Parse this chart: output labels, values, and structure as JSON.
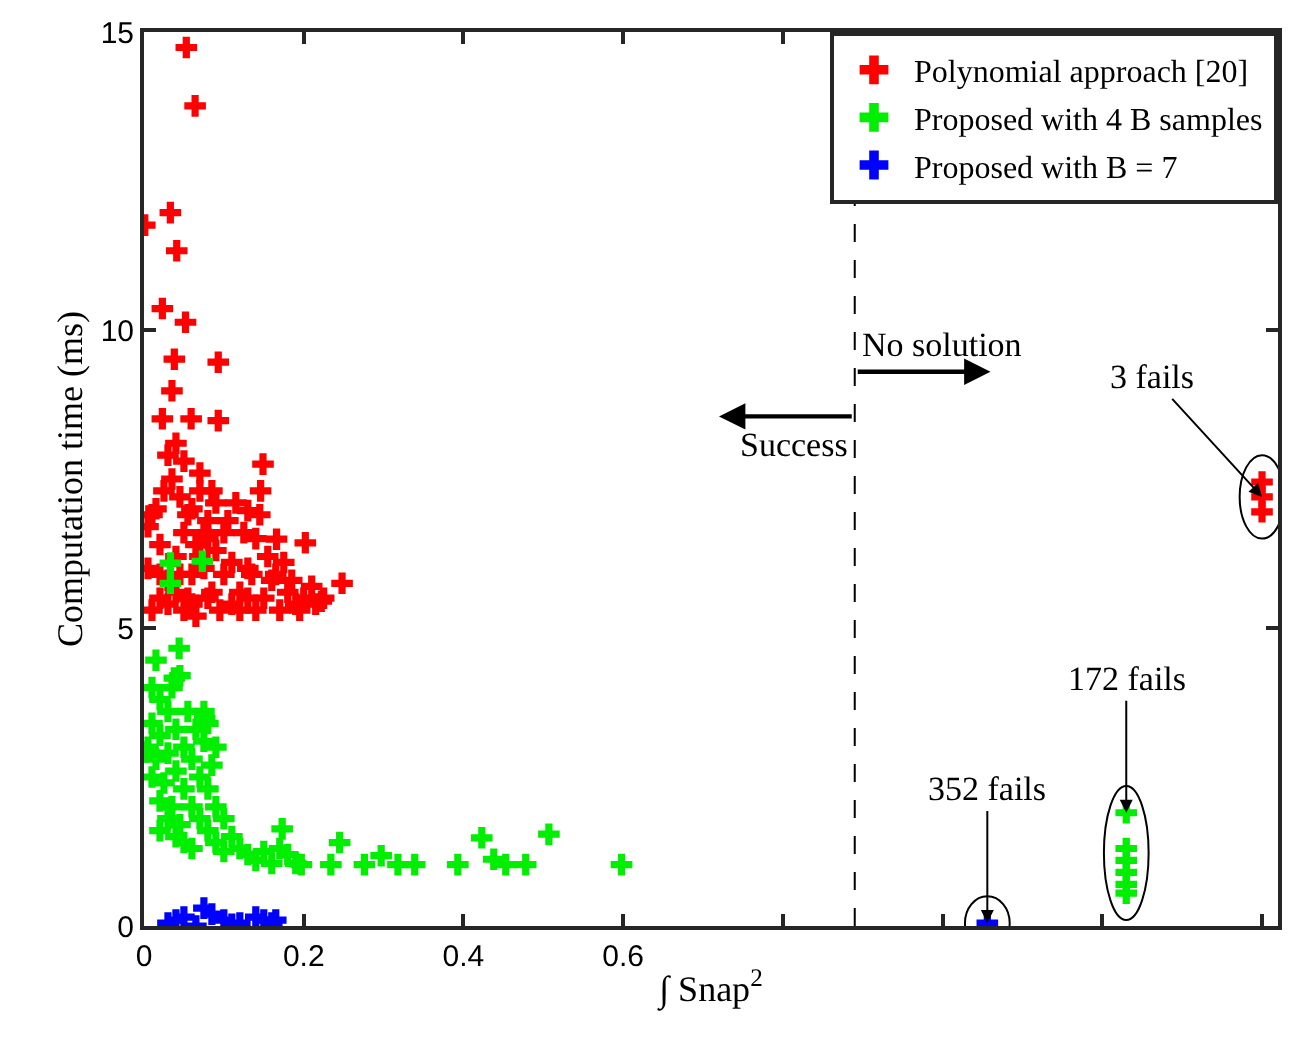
{
  "chart_data": {
    "type": "scatter",
    "xlabel": "∫ Snap$^{2}$",
    "ylabel": "Computation time (ms)",
    "marker": "cross",
    "legend": "top right",
    "xlim": [
      0,
      1.42
    ],
    "ylim": [
      0,
      15
    ],
    "xticks": [
      0,
      0.2,
      0.4,
      0.6,
      {
        "value": 0.8,
        "label": null
      },
      {
        "value": 1.0,
        "label": null
      },
      {
        "value": 1.2,
        "label": null
      },
      {
        "value": 1.4,
        "label": null
      }
    ],
    "yticks": [
      0,
      5,
      10,
      15
    ],
    "ref_lines": [
      {
        "axis": "x",
        "value": 0.89,
        "color": "#000000",
        "line_style": "dashed"
      }
    ],
    "annotations": [
      "Success",
      "No solution",
      {
        "text": "3 fails",
        "x": 1.4,
        "y": 7.2
      },
      {
        "text": "172 fails",
        "x": 1.23,
        "y": 1.9
      },
      {
        "text": "352 fails",
        "x": 1.056,
        "y": 0.05
      }
    ],
    "series": [
      {
        "name": "Polynomial approach [20]",
        "color": "#ff0000",
        "x": [
          0.053,
          0.064,
          0.033,
          0.001,
          0.041,
          0.023,
          0.052,
          0.038,
          0.093,
          0.035,
          0.023,
          0.059,
          0.093,
          0.149,
          0.146,
          0.248,
          0.202,
          0.166,
          0.222,
          0.13,
          0.01,
          0.02,
          0.03,
          0.04,
          0.05,
          0.06,
          0.07,
          0.08,
          0.09,
          0.1,
          0.11,
          0.12,
          0.13,
          0.14,
          0.15,
          0.16,
          0.17,
          0.18,
          0.19,
          0.2,
          0.21,
          0.005,
          0.005,
          0.015,
          0.025,
          0.035,
          0.045,
          0.055,
          0.065,
          0.075,
          0.085,
          0.095,
          0.105,
          0.115,
          0.125,
          0.135,
          0.02,
          0.03,
          0.04,
          0.05,
          0.06,
          0.07,
          0.08,
          0.09,
          0.1,
          0.03,
          0.05,
          0.07,
          0.04,
          0.11,
          0.145,
          0.155,
          0.165,
          0.175,
          0.185,
          0.195,
          0.215,
          0.225,
          0.06,
          0.08,
          0.02,
          0.01,
          0.045,
          0.055,
          0.065,
          0.075,
          0.085,
          0.12,
          0.13,
          0.14,
          1.4,
          1.4,
          1.4
        ],
        "values": [
          14.74,
          13.76,
          11.97,
          11.76,
          11.33,
          10.36,
          10.13,
          9.51,
          9.46,
          8.98,
          8.51,
          8.51,
          8.48,
          7.75,
          7.3,
          5.75,
          6.43,
          6.49,
          5.45,
          6.97,
          5.3,
          5.5,
          5.8,
          6.2,
          6.6,
          7.0,
          7.3,
          6.8,
          6.3,
          5.9,
          5.4,
          5.6,
          6.0,
          6.5,
          5.5,
          5.8,
          5.3,
          5.6,
          5.4,
          5.5,
          5.7,
          6.0,
          6.7,
          7.0,
          7.3,
          7.5,
          7.2,
          6.9,
          6.4,
          6.0,
          5.6,
          5.3,
          6.8,
          7.1,
          6.6,
          5.9,
          6.4,
          5.4,
          5.6,
          5.3,
          5.9,
          6.2,
          5.5,
          7.1,
          6.6,
          7.9,
          7.8,
          7.6,
          8.1,
          6.1,
          6.9,
          6.2,
          5.9,
          6.1,
          5.8,
          5.3,
          5.4,
          5.5,
          5.4,
          6.5,
          5.9,
          6.9,
          5.9,
          5.5,
          5.2,
          6.6,
          7.3,
          5.3,
          5.5,
          5.3,
          7.45,
          7.2,
          6.95
        ]
      },
      {
        "name": "Proposed with 4 B samples",
        "color": "#00ee00",
        "x": [
          0.033,
          0.073,
          0.033,
          0.173,
          0.245,
          0.423,
          0.507,
          0.598,
          0.339,
          0.318,
          0.393,
          0.438,
          0.453,
          0.478,
          0.297,
          0.276,
          0.234,
          0.197,
          0.044,
          0.015,
          0.038,
          0.076,
          0.001,
          0.01,
          0.02,
          0.03,
          0.04,
          0.05,
          0.06,
          0.07,
          0.08,
          0.09,
          0.1,
          0.02,
          0.03,
          0.04,
          0.05,
          0.06,
          0.07,
          0.08,
          0.01,
          0.02,
          0.03,
          0.04,
          0.05,
          0.06,
          0.01,
          0.015,
          0.025,
          0.035,
          0.045,
          0.055,
          0.065,
          0.075,
          0.085,
          0.09,
          0.08,
          0.075,
          0.02,
          0.005,
          0.11,
          0.12,
          0.13,
          0.14,
          0.15,
          0.16,
          0.17,
          0.18,
          0.19,
          0.1,
          0.09,
          0.035,
          0.045,
          1.23,
          1.23,
          1.23,
          1.23,
          1.23,
          1.23
        ],
        "values": [
          6.09,
          6.12,
          5.75,
          1.63,
          1.4,
          1.48,
          1.54,
          1.03,
          1.03,
          1.03,
          1.03,
          1.12,
          1.03,
          1.03,
          1.18,
          1.03,
          1.03,
          1.03,
          4.66,
          4.46,
          4.16,
          3.48,
          2.92,
          4.0,
          3.8,
          3.6,
          3.3,
          3.0,
          2.8,
          2.5,
          2.3,
          2.0,
          1.8,
          3.2,
          2.9,
          2.6,
          2.3,
          2.0,
          1.8,
          1.6,
          2.5,
          2.1,
          1.8,
          1.5,
          1.4,
          1.3,
          3.4,
          2.8,
          2.4,
          2.0,
          1.7,
          3.6,
          3.3,
          3.1,
          2.7,
          3.0,
          3.4,
          3.6,
          1.6,
          3.0,
          1.5,
          1.3,
          1.2,
          1.1,
          1.25,
          1.05,
          1.3,
          1.2,
          1.05,
          1.25,
          1.4,
          4.0,
          4.2,
          1.9,
          1.3,
          1.1,
          0.9,
          0.7,
          0.55
        ]
      },
      {
        "name": "Proposed with B = 7",
        "color": "#0000ff",
        "x": [
          0.03,
          0.04,
          0.05,
          0.075,
          0.1,
          0.11,
          0.14,
          0.15,
          0.16,
          0.065,
          0.085,
          0.12,
          0.165,
          1.056
        ],
        "values": [
          0.05,
          0.1,
          0.15,
          0.3,
          0.1,
          0.03,
          0.15,
          0.1,
          0.05,
          0.0,
          0.2,
          0.05,
          0.1,
          0.05
        ]
      }
    ]
  }
}
